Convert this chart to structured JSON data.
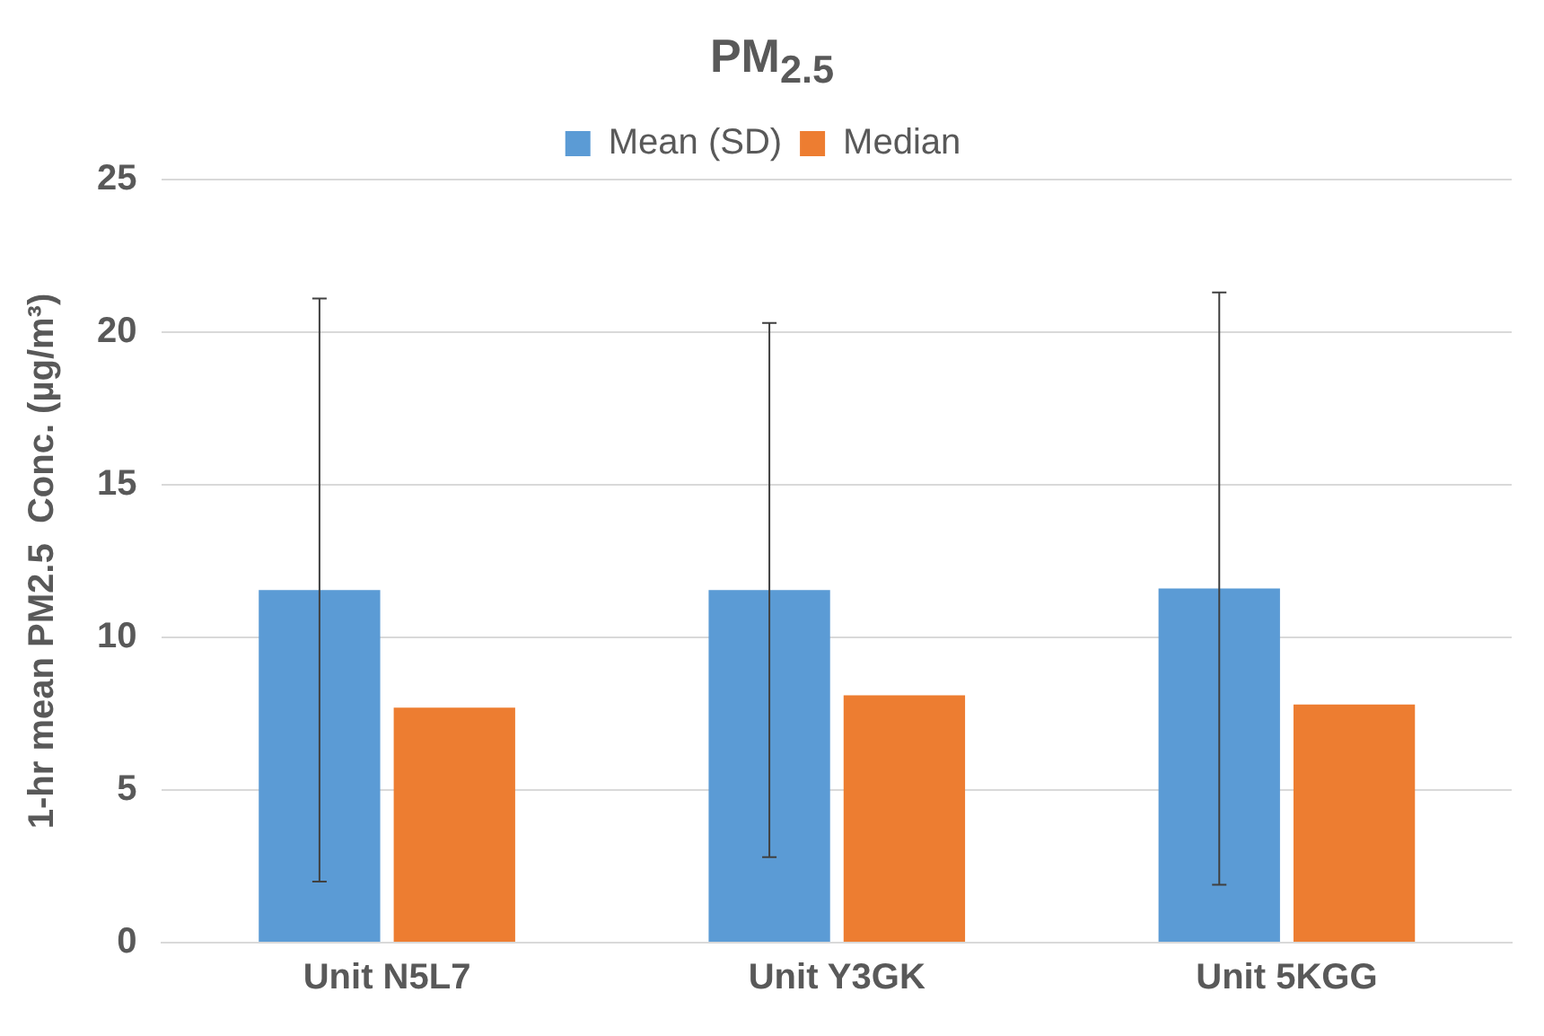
{
  "chart_data": {
    "type": "bar",
    "title": "PM$_{2.5}$",
    "ylabel": "1-hr mean PM2.5  Conc. (µg/m³)",
    "categories": [
      "Unit N5L7",
      "Unit Y3GK",
      "Unit 5KGG"
    ],
    "series": [
      {
        "name": "Mean (SD)",
        "color": "#5b9bd5",
        "values": [
          11.55,
          11.55,
          11.6
        ],
        "errors": [
          [
            2.0,
            21.1
          ],
          [
            2.8,
            20.3
          ],
          [
            1.9,
            21.3
          ]
        ]
      },
      {
        "name": "Median",
        "color": "#ed7d31",
        "values": [
          7.7,
          8.1,
          7.8
        ]
      }
    ],
    "ylim": [
      0,
      25
    ],
    "yticks": [
      0,
      5,
      10,
      15,
      20,
      25
    ],
    "grid": "y",
    "legend": "top"
  }
}
